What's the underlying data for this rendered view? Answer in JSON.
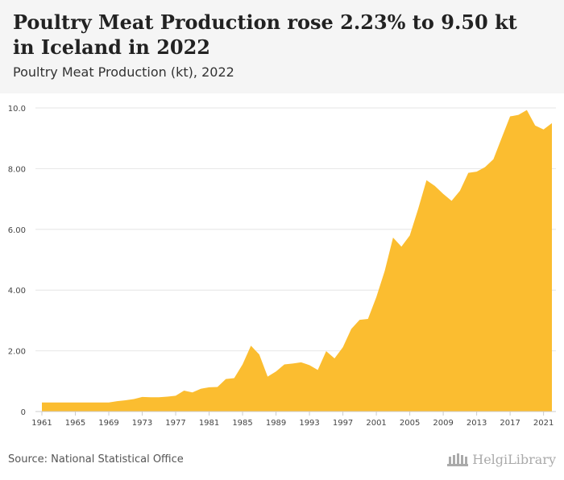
{
  "header": {
    "title": "Poultry Meat Production rose 2.23% to 9.50 kt in Iceland in 2022",
    "subtitle": "Poultry Meat Production (kt), 2022"
  },
  "footer": {
    "source": "Source: National Statistical Office",
    "brand": "HelgiLibrary"
  },
  "colors": {
    "area": "#fbbd30",
    "grid": "#e6e6e6",
    "axis": "#cccccc",
    "tick_text": "#444444"
  },
  "chart_data": {
    "type": "area",
    "title": "Poultry Meat Production (kt), 2022",
    "xlabel": "",
    "ylabel": "",
    "ylim": [
      0,
      10
    ],
    "grid": true,
    "yticks": [
      {
        "value": 0,
        "label": "0"
      },
      {
        "value": 2,
        "label": "2.00"
      },
      {
        "value": 4,
        "label": "4.00"
      },
      {
        "value": 6,
        "label": "6.00"
      },
      {
        "value": 8,
        "label": "8.00"
      },
      {
        "value": 10,
        "label": "10.0"
      }
    ],
    "xticks": [
      "1961",
      "1965",
      "1969",
      "1973",
      "1977",
      "1981",
      "1985",
      "1989",
      "1993",
      "1997",
      "2001",
      "2005",
      "2009",
      "2013",
      "2017",
      "2021"
    ],
    "x": [
      1961,
      1962,
      1963,
      1964,
      1965,
      1966,
      1967,
      1968,
      1969,
      1970,
      1971,
      1972,
      1973,
      1974,
      1975,
      1976,
      1977,
      1978,
      1979,
      1980,
      1981,
      1982,
      1983,
      1984,
      1985,
      1986,
      1987,
      1988,
      1989,
      1990,
      1991,
      1992,
      1993,
      1994,
      1995,
      1996,
      1997,
      1998,
      1999,
      2000,
      2001,
      2002,
      2003,
      2004,
      2005,
      2006,
      2007,
      2008,
      2009,
      2010,
      2011,
      2012,
      2013,
      2014,
      2015,
      2016,
      2017,
      2018,
      2019,
      2020,
      2021,
      2022
    ],
    "values": [
      0.3,
      0.3,
      0.3,
      0.3,
      0.3,
      0.3,
      0.3,
      0.3,
      0.3,
      0.34,
      0.37,
      0.41,
      0.48,
      0.47,
      0.47,
      0.49,
      0.52,
      0.69,
      0.63,
      0.75,
      0.8,
      0.81,
      1.07,
      1.1,
      1.55,
      2.17,
      1.88,
      1.15,
      1.32,
      1.55,
      1.58,
      1.62,
      1.53,
      1.37,
      1.99,
      1.75,
      2.12,
      2.72,
      3.02,
      3.05,
      3.77,
      4.63,
      5.73,
      5.43,
      5.8,
      6.67,
      7.62,
      7.43,
      7.17,
      6.94,
      7.27,
      7.86,
      7.9,
      8.05,
      8.31,
      9.02,
      9.72,
      9.77,
      9.93,
      9.42,
      9.29,
      9.5
    ]
  }
}
